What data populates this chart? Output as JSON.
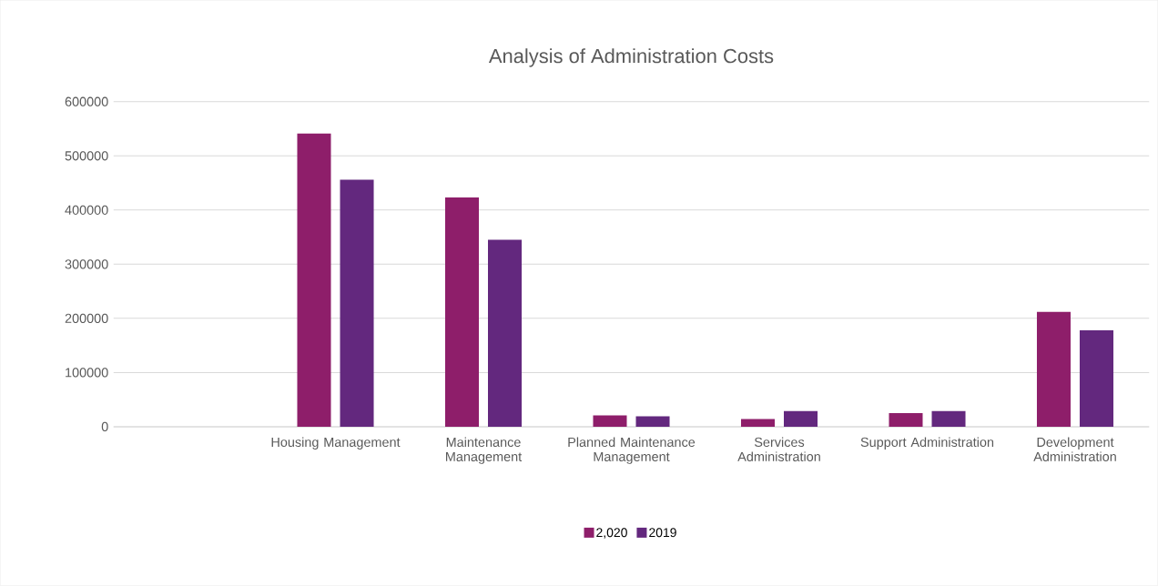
{
  "chart_data": {
    "type": "bar",
    "title": "Analysis of Administration Costs",
    "categories": [
      null,
      "Housing Management",
      "Maintenance Management",
      "Planned Maintenance Management",
      "Services Administration",
      "Support Administration",
      "Development Administration"
    ],
    "series": [
      {
        "name": "2,020",
        "color": "#8e1e6a",
        "values": [
          null,
          541000,
          423000,
          21000,
          14000,
          25000,
          212000
        ]
      },
      {
        "name": "2019",
        "color": "#63287e",
        "values": [
          null,
          456000,
          345000,
          19000,
          29000,
          29000,
          178000
        ]
      }
    ],
    "ylim": [
      0,
      600000
    ],
    "yticks": [
      0,
      100000,
      200000,
      300000,
      400000,
      500000,
      600000
    ],
    "grid": "y",
    "legend": "bottom"
  }
}
